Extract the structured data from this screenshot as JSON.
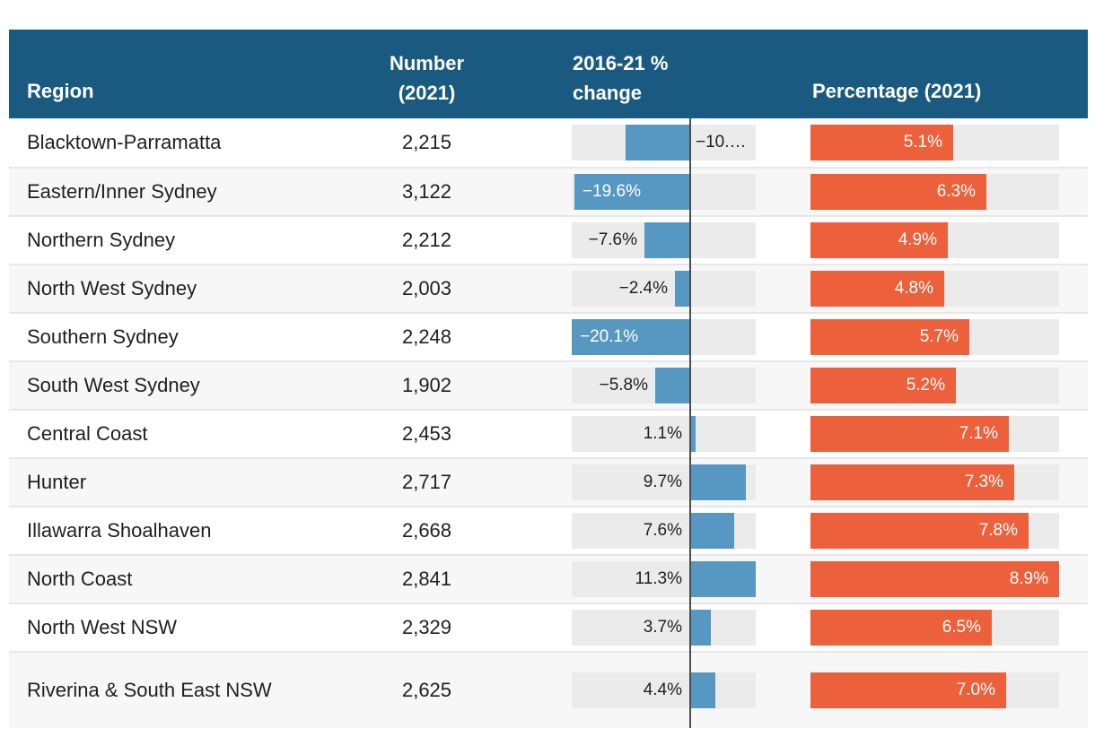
{
  "table": {
    "header": {
      "region": "Region",
      "number": "Number\n(2021)",
      "change": "2016-21 %\nchange",
      "percentage": "Percentage (2021)"
    }
  },
  "colors": {
    "header_bg": "#1a5a80",
    "header_text": "#ffffff",
    "body_text": "#1f1f1f",
    "track": "#ebebeb",
    "change_bar": "#5698c1",
    "percentage_bar": "#ec613b",
    "zero_line": "#4d4d4d",
    "row_alt_bg": "#f7f7f7",
    "row_separator": "#e7e7e7"
  },
  "chart_data": {
    "type": "table",
    "columns": [
      "Region",
      "Number (2021)",
      "2016-21 % change",
      "Percentage (2021)"
    ],
    "change_axis": {
      "min": -20.1,
      "max": 11.3,
      "zero_line": true
    },
    "percentage_axis": {
      "min": 0,
      "max": 8.9
    },
    "rows": [
      {
        "region": "Blacktown-Parramatta",
        "number": "2,215",
        "change": -10.8,
        "change_label": "−10.…",
        "change_label_side": "after-line",
        "percentage": 5.1,
        "percentage_label": "5.1%"
      },
      {
        "region": "Eastern/Inner Sydney",
        "number": "3,122",
        "change": -19.6,
        "change_label": "−19.6%",
        "change_label_side": "inside",
        "percentage": 6.3,
        "percentage_label": "6.3%"
      },
      {
        "region": "Northern Sydney",
        "number": "2,212",
        "change": -7.6,
        "change_label": "−7.6%",
        "change_label_side": "before-bar",
        "percentage": 4.9,
        "percentage_label": "4.9%"
      },
      {
        "region": "North West Sydney",
        "number": "2,003",
        "change": -2.4,
        "change_label": "−2.4%",
        "change_label_side": "before-bar",
        "percentage": 4.8,
        "percentage_label": "4.8%"
      },
      {
        "region": "Southern Sydney",
        "number": "2,248",
        "change": -20.1,
        "change_label": "−20.1%",
        "change_label_side": "inside",
        "percentage": 5.7,
        "percentage_label": "5.7%"
      },
      {
        "region": "South West Sydney",
        "number": "1,902",
        "change": -5.8,
        "change_label": "−5.8%",
        "change_label_side": "before-bar",
        "percentage": 5.2,
        "percentage_label": "5.2%"
      },
      {
        "region": "Central Coast",
        "number": "2,453",
        "change": 1.1,
        "change_label": "1.1%",
        "change_label_side": "before-line",
        "percentage": 7.1,
        "percentage_label": "7.1%"
      },
      {
        "region": "Hunter",
        "number": "2,717",
        "change": 9.7,
        "change_label": "9.7%",
        "change_label_side": "before-line",
        "percentage": 7.3,
        "percentage_label": "7.3%"
      },
      {
        "region": "Illawarra Shoalhaven",
        "number": "2,668",
        "change": 7.6,
        "change_label": "7.6%",
        "change_label_side": "before-line",
        "percentage": 7.8,
        "percentage_label": "7.8%"
      },
      {
        "region": "North Coast",
        "number": "2,841",
        "change": 11.3,
        "change_label": "11.3%",
        "change_label_side": "before-line",
        "percentage": 8.9,
        "percentage_label": "8.9%"
      },
      {
        "region": "North West NSW",
        "number": "2,329",
        "change": 3.7,
        "change_label": "3.7%",
        "change_label_side": "before-line",
        "percentage": 6.5,
        "percentage_label": "6.5%"
      },
      {
        "region": "Riverina & South East NSW",
        "number": "2,625",
        "change": 4.4,
        "change_label": "4.4%",
        "change_label_side": "before-line",
        "percentage": 7.0,
        "percentage_label": "7.0%"
      }
    ]
  }
}
